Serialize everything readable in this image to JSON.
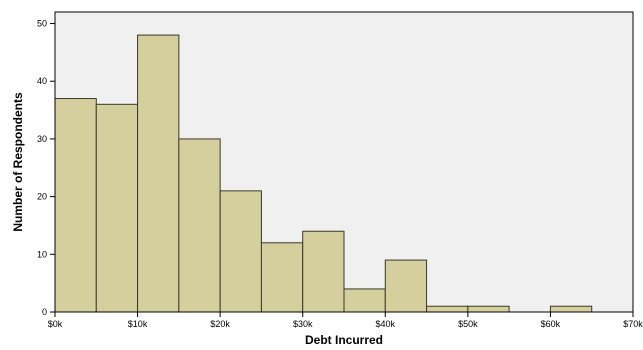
{
  "chart_data": {
    "type": "bar",
    "subtype": "histogram",
    "title": "",
    "xlabel": "Debt Incurred",
    "ylabel": "Number of Respondents",
    "bin_width": 5000,
    "bins": [
      {
        "start": 0,
        "end": 5000,
        "count": 37
      },
      {
        "start": 5000,
        "end": 10000,
        "count": 36
      },
      {
        "start": 10000,
        "end": 15000,
        "count": 48
      },
      {
        "start": 15000,
        "end": 20000,
        "count": 30
      },
      {
        "start": 20000,
        "end": 25000,
        "count": 21
      },
      {
        "start": 25000,
        "end": 30000,
        "count": 12
      },
      {
        "start": 30000,
        "end": 35000,
        "count": 14
      },
      {
        "start": 35000,
        "end": 40000,
        "count": 4
      },
      {
        "start": 40000,
        "end": 45000,
        "count": 9
      },
      {
        "start": 45000,
        "end": 50000,
        "count": 1
      },
      {
        "start": 50000,
        "end": 55000,
        "count": 1
      },
      {
        "start": 55000,
        "end": 60000,
        "count": 0
      },
      {
        "start": 60000,
        "end": 65000,
        "count": 1
      }
    ],
    "xlim": [
      0,
      70000
    ],
    "ylim": [
      0,
      52
    ],
    "x_ticks": [
      {
        "value": 0,
        "label": "$0k"
      },
      {
        "value": 10000,
        "label": "$10k"
      },
      {
        "value": 20000,
        "label": "$20k"
      },
      {
        "value": 30000,
        "label": "$30k"
      },
      {
        "value": 40000,
        "label": "$40k"
      },
      {
        "value": 50000,
        "label": "$50k"
      },
      {
        "value": 60000,
        "label": "$60k"
      },
      {
        "value": 70000,
        "label": "$70k"
      }
    ],
    "y_ticks": [
      {
        "value": 0,
        "label": "0"
      },
      {
        "value": 10,
        "label": "10"
      },
      {
        "value": 20,
        "label": "20"
      },
      {
        "value": 30,
        "label": "30"
      },
      {
        "value": 40,
        "label": "40"
      },
      {
        "value": 50,
        "label": "50"
      }
    ],
    "grid": false,
    "legend": "none",
    "colors": {
      "bar_fill": "#d4cf9c",
      "bar_stroke": "#3a3a2a",
      "plot_background": "#f0f0f0"
    }
  }
}
